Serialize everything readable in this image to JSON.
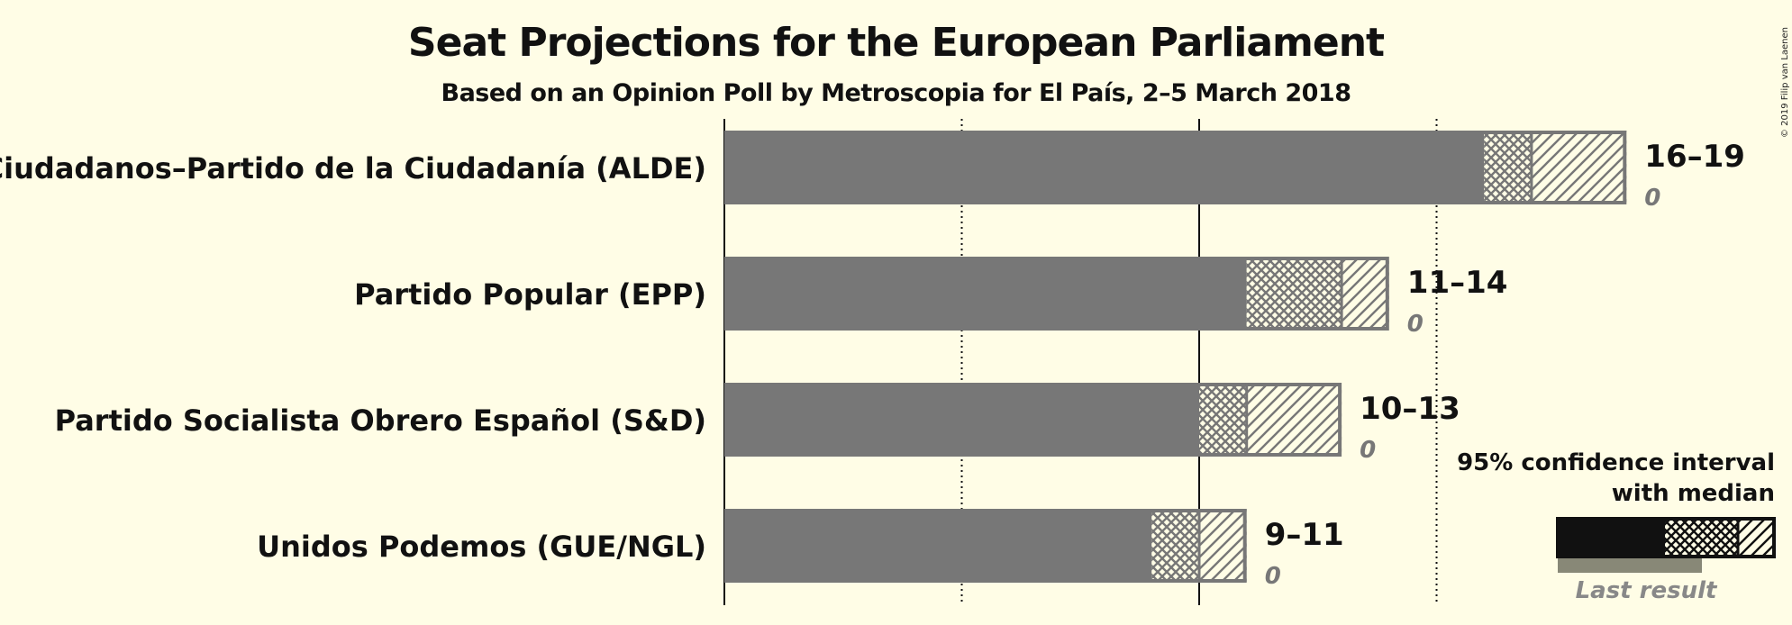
{
  "chart_data": {
    "type": "bar",
    "title": "Seat Projections for the European Parliament",
    "subtitle": "Based on an Opinion Poll by Metroscopia for El País, 2–5 March 2018",
    "copyright": "© 2019 Filip van Laenen",
    "x_range": [
      0,
      19
    ],
    "gridlines_dotted": [
      5,
      15
    ],
    "gridlines_solid": [
      0,
      10
    ],
    "series": [
      {
        "party": "Ciudadanos–Partido de la Ciudadanía (ALDE)",
        "low": 16,
        "median": 17,
        "high": 19,
        "range_label": "16–19",
        "last_result": 0,
        "last_label": "0"
      },
      {
        "party": "Partido Popular (EPP)",
        "low": 11,
        "median": 13,
        "high": 14,
        "range_label": "11–14",
        "last_result": 0,
        "last_label": "0"
      },
      {
        "party": "Partido Socialista Obrero Español (S&D)",
        "low": 10,
        "median": 11,
        "high": 13,
        "range_label": "10–13",
        "last_result": 0,
        "last_label": "0"
      },
      {
        "party": "Unidos Podemos (GUE/NGL)",
        "low": 9,
        "median": 10,
        "high": 11,
        "range_label": "9–11",
        "last_result": 0,
        "last_label": "0"
      }
    ],
    "legend": {
      "line1": "95% confidence interval",
      "line2": "with median",
      "last_result": "Last result",
      "position": "bottom-right"
    },
    "colors": {
      "bar": "#777777",
      "outline": "#777777",
      "legend_dark": "#111111",
      "legend_last": "#888877",
      "background": "#FFFDE6"
    }
  }
}
